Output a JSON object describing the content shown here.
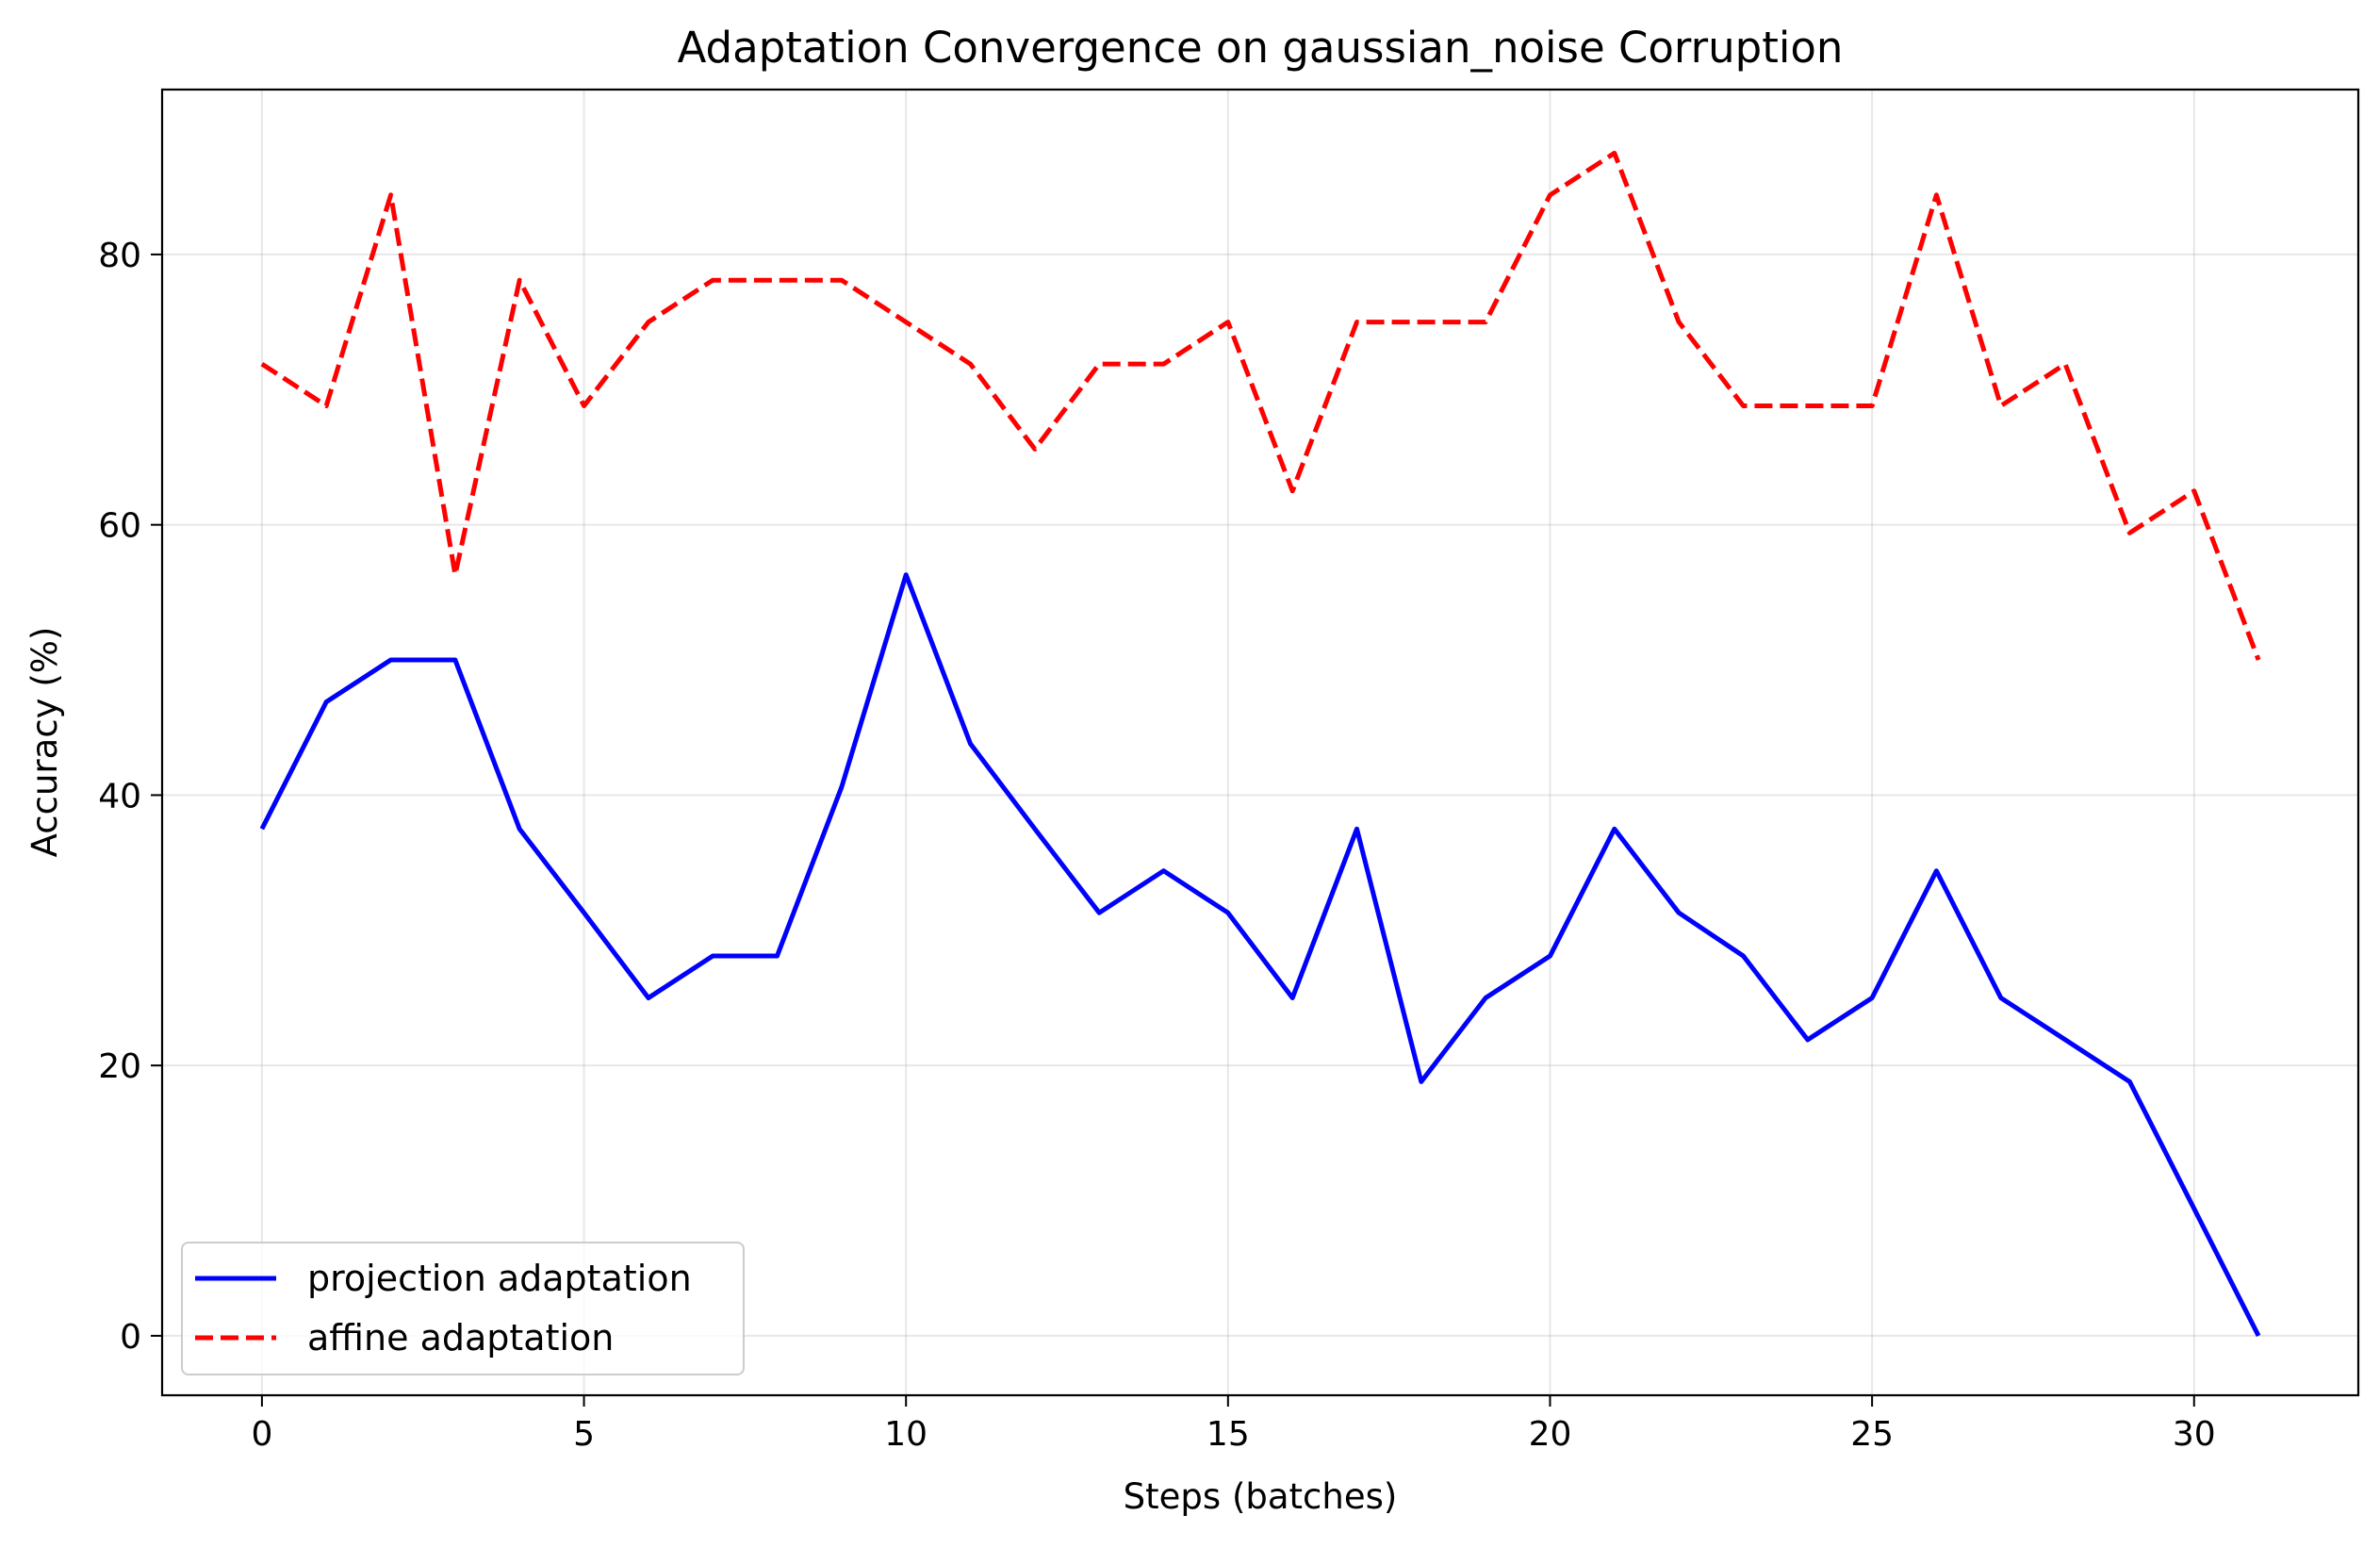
{
  "chart_data": {
    "type": "line",
    "title": "Adaptation Convergence on gaussian_noise Corruption",
    "xlabel": "Steps (batches)",
    "ylabel": "Accuracy (%)",
    "xlim": [
      -1.55,
      32.55
    ],
    "ylim": [
      -4.4,
      92.2
    ],
    "xticks": [
      0,
      5,
      10,
      15,
      20,
      25,
      30
    ],
    "yticks": [
      0,
      20,
      40,
      60,
      80
    ],
    "grid": true,
    "legend_position": "lower-left",
    "x": [
      0,
      1,
      2,
      3,
      4,
      5,
      6,
      7,
      8,
      9,
      10,
      11,
      12,
      13,
      14,
      15,
      16,
      17,
      18,
      19,
      20,
      21,
      22,
      23,
      24,
      25,
      26,
      27,
      28,
      29,
      30,
      31
    ],
    "series": [
      {
        "name": "projection adaptation",
        "color": "#0000ff",
        "style": "solid",
        "values": [
          37.5,
          46.9,
          50.0,
          50.0,
          37.5,
          31.3,
          25.0,
          28.1,
          28.1,
          40.6,
          56.3,
          43.8,
          37.5,
          31.3,
          34.4,
          31.3,
          25.0,
          37.5,
          18.8,
          25.0,
          28.1,
          37.5,
          31.3,
          28.1,
          21.9,
          25.0,
          34.4,
          25.0,
          21.9,
          18.8,
          9.4,
          0.0
        ]
      },
      {
        "name": "affine adaptation",
        "color": "#ff0000",
        "style": "dashed",
        "values": [
          71.9,
          68.8,
          84.4,
          56.3,
          78.1,
          68.8,
          75.0,
          78.1,
          78.1,
          78.1,
          75.0,
          71.9,
          65.6,
          71.9,
          71.9,
          75.0,
          62.5,
          75.0,
          75.0,
          75.0,
          84.4,
          87.5,
          75.0,
          68.8,
          68.8,
          68.8,
          84.4,
          68.8,
          71.9,
          59.4,
          62.5,
          50.0
        ]
      }
    ]
  }
}
